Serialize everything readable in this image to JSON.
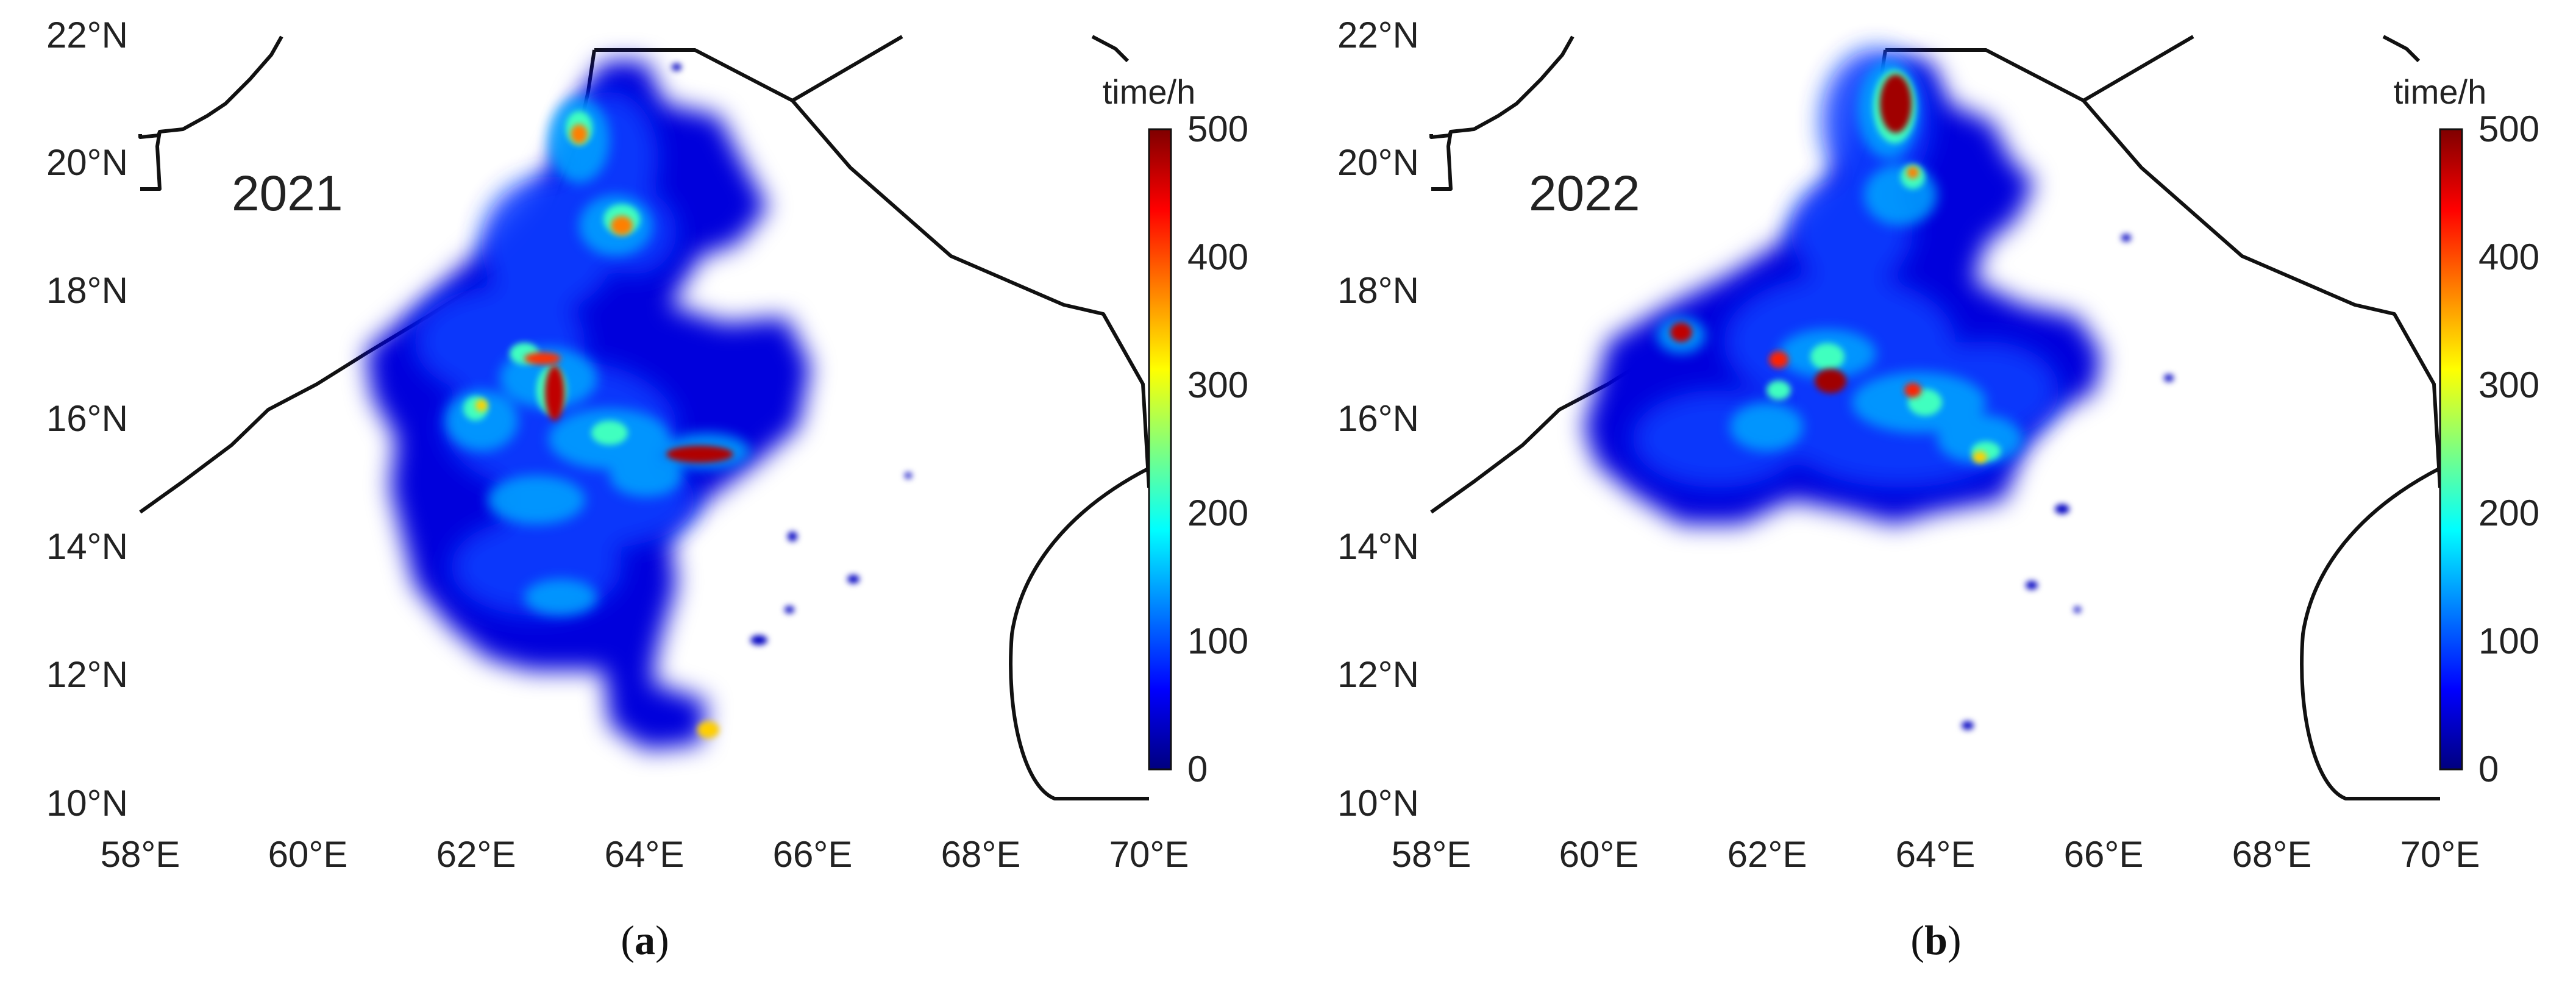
{
  "colorscale": [
    "#00007f",
    "#0000ff",
    "#007fff",
    "#00ffff",
    "#7fff7f",
    "#ffff00",
    "#ff7f00",
    "#ff0000",
    "#7f0000"
  ],
  "panels": [
    {
      "year": "2021",
      "caption_open": "(",
      "caption_letter": "a",
      "caption_close": ")",
      "colorbar_title": "time/h",
      "colorbar_ticks": [
        "0",
        "100",
        "200",
        "300",
        "400",
        "500"
      ],
      "lat_ticks": [
        "10°N",
        "12°N",
        "14°N",
        "16°N",
        "18°N",
        "20°N",
        "22°N"
      ],
      "lon_ticks": [
        "58°E",
        "60°E",
        "62°E",
        "64°E",
        "66°E",
        "68°E",
        "70°E"
      ]
    },
    {
      "year": "2022",
      "caption_open": "(",
      "caption_letter": "b",
      "caption_close": ")",
      "colorbar_title": "time/h",
      "colorbar_ticks": [
        "0",
        "100",
        "200",
        "300",
        "400",
        "500"
      ],
      "lat_ticks": [
        "10°N",
        "12°N",
        "14°N",
        "16°N",
        "18°N",
        "20°N",
        "22°N"
      ],
      "lon_ticks": [
        "58°E",
        "60°E",
        "62°E",
        "64°E",
        "66°E",
        "68°E",
        "70°E"
      ]
    }
  ]
}
